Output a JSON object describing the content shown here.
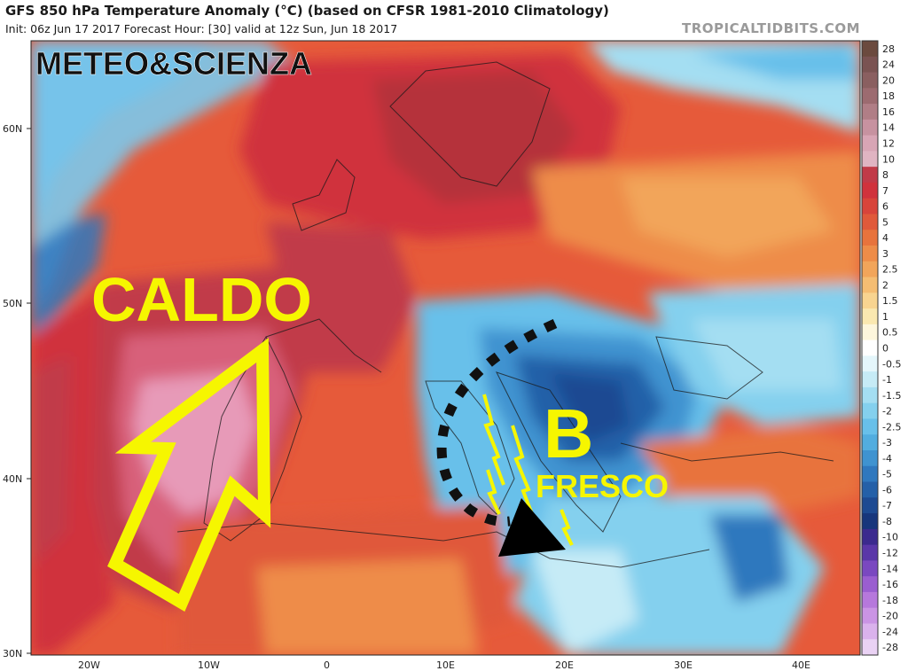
{
  "header": {
    "title": "GFS 850 hPa Temperature Anomaly (°C) (based on CFSR 1981-2010 Climatology)",
    "subtitle": "Init: 06z Jun 17 2017   Forecast Hour: [30]   valid at 12z Sun, Jun 18 2017",
    "credit": "TROPICALTIDBITS.COM"
  },
  "axes": {
    "lat_labels": [
      "60N",
      "50N",
      "40N",
      "30N"
    ],
    "lon_labels": [
      "20W",
      "10W",
      "0",
      "10E",
      "20E",
      "30E",
      "40E"
    ]
  },
  "colorbar": {
    "labels": [
      "28",
      "24",
      "20",
      "18",
      "16",
      "14",
      "12",
      "10",
      "8",
      "7",
      "6",
      "5",
      "4",
      "3",
      "2.5",
      "2",
      "1.5",
      "1",
      "0.5",
      "0",
      "-0.5",
      "-1",
      "-1.5",
      "-2",
      "-2.5",
      "-3",
      "-4",
      "-5",
      "-6",
      "-7",
      "-8",
      "-10",
      "-12",
      "-14",
      "-16",
      "-18",
      "-20",
      "-24",
      "-28"
    ],
    "colors": [
      "#6b4a3e",
      "#7a5352",
      "#8a5f60",
      "#9c6b70",
      "#b07e86",
      "#c792a0",
      "#d8a5b5",
      "#e0b4c2",
      "#c13a48",
      "#d0323c",
      "#d8443a",
      "#e0593a",
      "#e8733c",
      "#ee8c48",
      "#f2a55a",
      "#f5bd72",
      "#f8d490",
      "#fae8b0",
      "#fdf6dc",
      "#ffffff",
      "#e4f6fb",
      "#c6ebf6",
      "#a4def2",
      "#84d0ee",
      "#68c0ea",
      "#52addf",
      "#3f93d0",
      "#2f78be",
      "#2460a8",
      "#1d4a92",
      "#17367c",
      "#3b2a8e",
      "#5a37a8",
      "#7a48c0",
      "#9a5ed0",
      "#b678dc",
      "#ca94e4",
      "#dab2ec",
      "#ead2f4"
    ]
  },
  "annotations": {
    "brand": "METEO&SCIENZA",
    "warm_label": "CALDO",
    "low_label": "B",
    "cool_label": "FRESCO"
  },
  "palette": {
    "annotation_yellow": "#f6f600",
    "ocean_cool": "#7cc9ec",
    "land_warm": "#e8643c",
    "anomaly_max": "#e79ab8",
    "anomaly_min": "#1d4a92"
  }
}
